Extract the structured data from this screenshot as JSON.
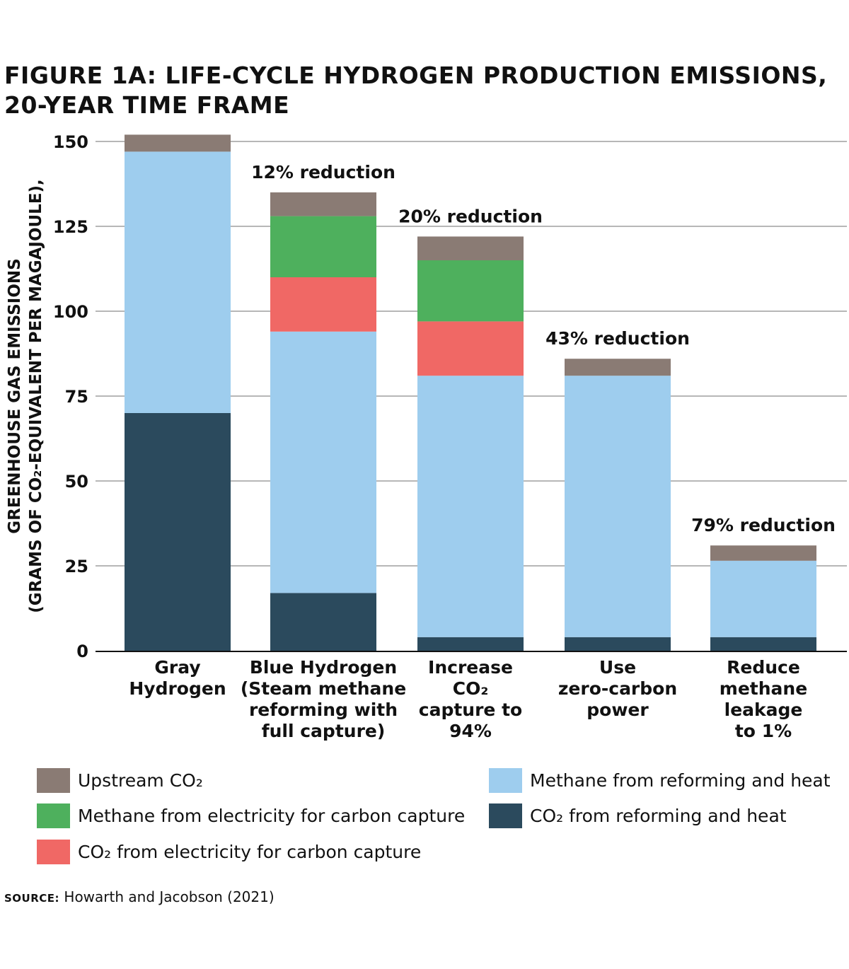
{
  "title_lines": [
    "FIGURE 1A: LIFE-CYCLE HYDROGEN PRODUCTION EMISSIONS,",
    "20-YEAR TIME FRAME"
  ],
  "chart_data": {
    "type": "bar",
    "stacked": true,
    "ylabel_lines": [
      "GREENHOUSE GAS EMISSIONS",
      "(GRAMS OF CO₂-EQUIVALENT PER MAGAJOULE),"
    ],
    "xlabel": "",
    "ylim": [
      0,
      150
    ],
    "yticks": [
      0,
      25,
      50,
      75,
      100,
      125,
      150
    ],
    "grid": true,
    "categories": [
      [
        "Gray",
        "Hydrogen"
      ],
      [
        "Blue Hydrogen",
        "(Steam methane",
        "reforming with",
        "full capture)"
      ],
      [
        "Increase",
        "CO₂",
        "capture to",
        "94%"
      ],
      [
        "Use",
        "zero-carbon",
        "power"
      ],
      [
        "Reduce",
        "methane",
        "leakage",
        "to 1%"
      ]
    ],
    "annotations": [
      "",
      "12% reduction",
      "20% reduction",
      "43% reduction",
      "79% reduction"
    ],
    "series": [
      {
        "name": "CO₂ from reforming and heat",
        "color": "#2b4a5d",
        "values": [
          70,
          17,
          4,
          4,
          4
        ]
      },
      {
        "name": "Methane from reforming and heat",
        "color": "#9ecdee",
        "values": [
          77,
          77,
          77,
          77,
          22.5
        ]
      },
      {
        "name": "CO₂ from electricity for carbon capture",
        "color": "#f06865",
        "values": [
          0,
          16,
          16,
          0,
          0
        ]
      },
      {
        "name": "Methane from electricity for carbon capture",
        "color": "#4eb05d",
        "values": [
          0,
          18,
          18,
          0,
          0
        ]
      },
      {
        "name": "Upstream CO₂",
        "color": "#8a7b74",
        "values": [
          5,
          7,
          7,
          5,
          4.5
        ]
      }
    ],
    "legend_position": "bottom"
  },
  "legend": {
    "left": [
      {
        "label": "Upstream CO₂",
        "color": "#8a7b74"
      },
      {
        "label": "Methane from electricity for carbon capture",
        "color": "#4eb05d"
      },
      {
        "label": "CO₂ from electricity for carbon capture",
        "color": "#f06865"
      }
    ],
    "right": [
      {
        "label": "Methane from reforming and heat",
        "color": "#9ecdee"
      },
      {
        "label": "CO₂ from reforming and heat",
        "color": "#2b4a5d"
      }
    ]
  },
  "source": {
    "key": "SOURCE:",
    "text": " Howarth and Jacobson (2021)"
  }
}
